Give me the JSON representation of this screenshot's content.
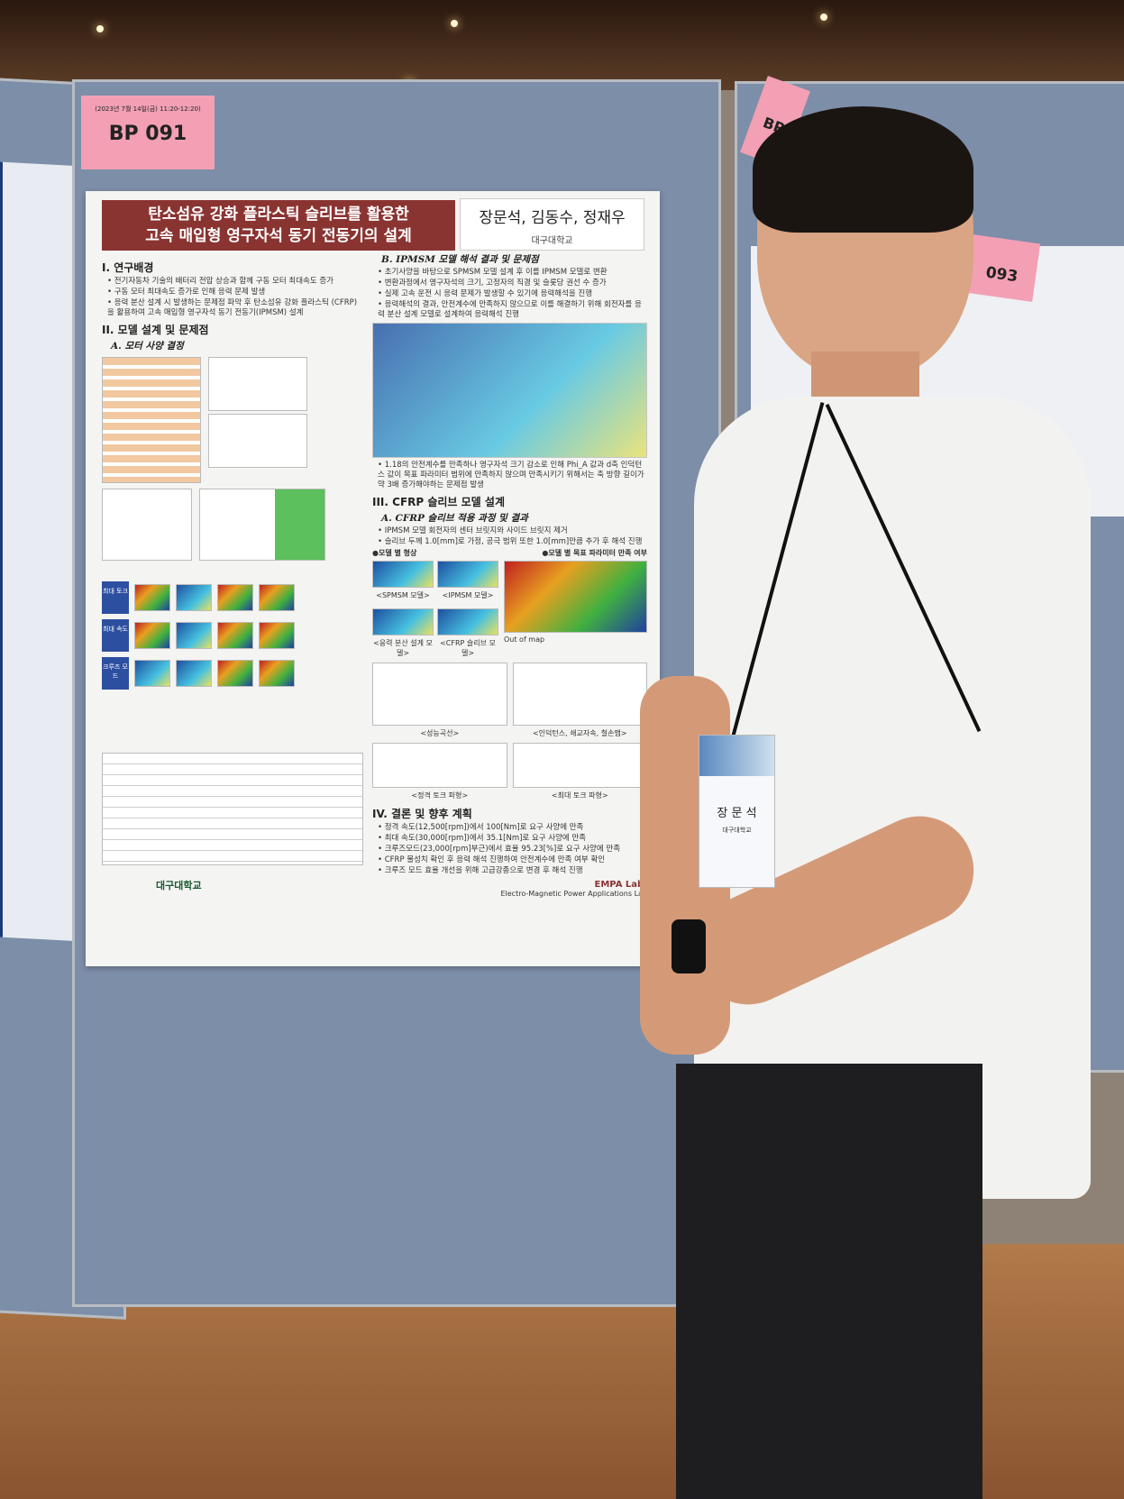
{
  "session_tag": {
    "date": "(2023년 7월 14일(금) 11:20-12:20)",
    "code": "BP 091"
  },
  "neighbor_tags": [
    {
      "code": "BP"
    },
    {
      "code": "093"
    }
  ],
  "poster": {
    "title_line1": "탄소섬유 강화 플라스틱 슬리브를 활용한",
    "title_line2": "고속 매입형 영구자석 동기 전동기의 설계",
    "authors": "장문석, 김동수, 정재우",
    "affiliation": "대구대학교",
    "sec1": {
      "heading": "I. 연구배경",
      "bullets": [
        "전기자동차 기술의 배터리 전압 상승과 함께 구동 모터 최대속도 증가",
        "구동 모터 최대속도 증가로 인해 응력 문제 발생",
        "응력 분산 설계 시 발생하는 문제점 파악 후 탄소섬유 강화 플라스틱 (CFRP)을 활용하여 고속 매입형 영구자석 동기 전동기(IPMSM) 설계"
      ]
    },
    "sec2": {
      "heading": "II. 모델 설계 및 문제점",
      "subA": "A. 모터 사양 결정",
      "subB": "B. IPMSM 모델 해석 결과 및 문제점",
      "bulletsB": [
        "초기사양을 바탕으로 SPMSM 모델 설계 후 이를 IPMSM 모델로 변환",
        "변환과정에서 영구자석의 크기, 고정자의 직경 및 슬롯당 권선 수 증가",
        "실제 고속 운전 시 응력 문제가 발생할 수 있기에 응력해석을 진행",
        "응력해석의 결과, 안전계수에 만족하지 않으므로 이를 해결하기 위해 회전자를 응력 분산 설계 모델로 설계하여 응력해석 진행"
      ],
      "bulletB2": "1.18의 안전계수를 만족하나 영구자석 크기 감소로 인해 Phi_A 값과 d축 인덕턴스 값이 목표 파라미터 범위에 만족하지 않으며 만족시키기 위해서는 축 방향 길이가 약 3배 증가해야하는 문제점 발생"
    },
    "sec3": {
      "heading": "III. CFRP 슬리브 모델 설계",
      "subA": "A. CFRP 슬리브 적용 과정 및 결과",
      "bullets": [
        "IPMSM 모델 회전자의 센터 브릿지와 사이드 브릿지 제거",
        "슬리브 두께 1.0[mm]로 가정, 공극 범위 또한 1.0[mm]만큼 추가 후 해석 진행"
      ],
      "fig_shape": "●모델 별 형상",
      "fig_target": "●모델 별 목표 파라미터 만족 여부",
      "cap_spmsm": "<SPMSM 모델>",
      "cap_ipmsm": "<IPMSM 모델>",
      "cap_stress": "<응력 분산 설계 모델>",
      "cap_cfrp": "<CFRP 슬리브 모델>",
      "out_of_map": "Out of map",
      "cap_perf": "<성능곡선>",
      "cap_ind": "<인덕턴스, 쇄교자속, 철손맵>",
      "cap_rated": "<정격 토크 파형>",
      "cap_max": "<최대 토크 파형>"
    },
    "sec4": {
      "heading": "IV. 결론 및 향후 계획",
      "bullets": [
        "정격 속도(12,500[rpm])에서 100[Nm]로 요구 사양에 만족",
        "최대 속도(30,000[rpm])에서 35.1[Nm]로 요구 사양에 만족",
        "크루즈모드(23,000[rpm]부근)에서 효율 95.23[%]로 요구 사양에 만족",
        "CFRP 물성치 확인 후 응력 해석 진행하여 안전계수에 만족 여부 확인",
        "크루즈 모드 효율 개선을 위해 고급강종으로 변경 후 해석 진행"
      ]
    },
    "left_labels": [
      "최대 토크",
      "최대 속도",
      "크루즈 모드"
    ],
    "footer_univ": "대구대학교",
    "footer_lab": "Electro-Magnetic Power Applications Lab",
    "lab_logo": "EMPA Lab."
  },
  "badge": {
    "name": "장 문 석",
    "org": "대구대학교"
  },
  "colors": {
    "title_bar": "#8a3432",
    "board": "#7d8ea8",
    "tag": "#f3a0b4",
    "shirt": "#f2f2f0"
  }
}
